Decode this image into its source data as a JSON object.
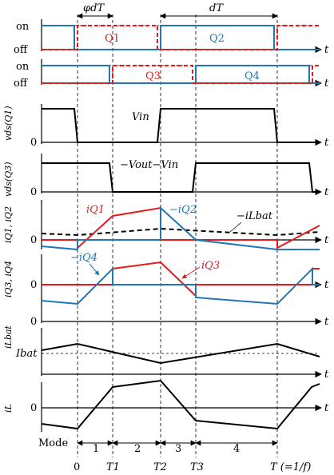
{
  "labels": {
    "on": "on",
    "off": "off",
    "q1": "Q1",
    "q2": "Q2",
    "q3": "Q3",
    "q4": "Q4",
    "phase": "φdT",
    "duty": "dT",
    "vds_q1": "vds(Q1)",
    "vds_q3": "vds(Q3)",
    "vin": "Vin",
    "vout_vin": "−Vout−Vin",
    "iq12": "iQ1, iQ2",
    "iq34": "iQ3, iQ4",
    "iq1": "iQ1",
    "iq2": "−iQ2",
    "ilbat_neg": "−iLbat",
    "iq3": "iQ3",
    "iq4": "−iQ4",
    "ilbat": "iLbat",
    "ibat": "Ibat",
    "il": "iL",
    "zero": "0",
    "t": "t",
    "mode": "Mode",
    "mode1": "1",
    "mode2": "2",
    "mode3": "3",
    "mode4": "4",
    "t0": "0",
    "t1": "T1",
    "t2": "T2",
    "t3": "T3",
    "tT": "T (=1/f)"
  }
}
